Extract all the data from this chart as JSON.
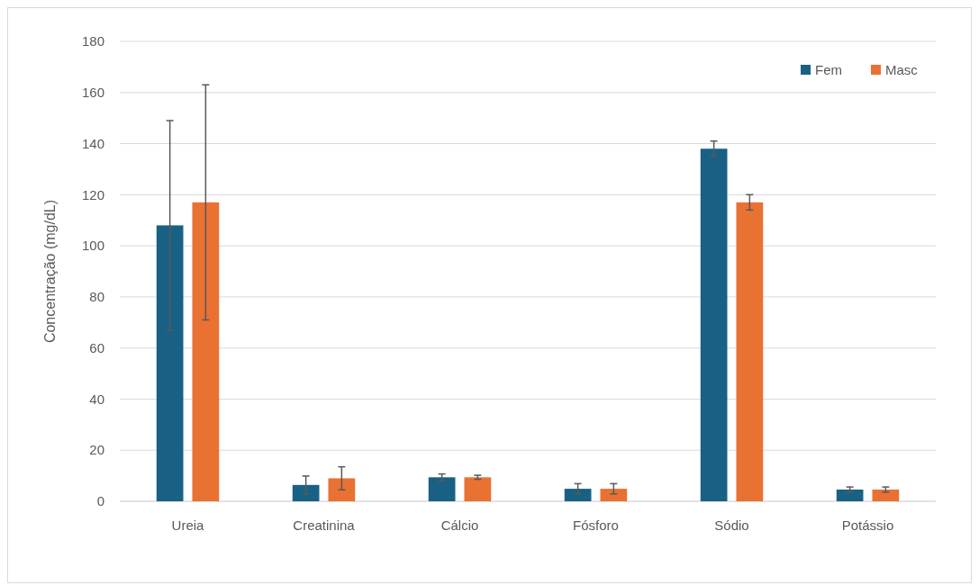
{
  "chart_data": {
    "type": "bar",
    "ylabel": "Concentração (mg/dL)",
    "categories": [
      "Ureia",
      "Creatinina",
      "Cálcio",
      "Fósforo",
      "Sódio",
      "Potássio"
    ],
    "series": [
      {
        "name": "Fem",
        "color": "#196184",
        "values": [
          108,
          6.4,
          9.4,
          4.9,
          138,
          4.6
        ],
        "errors": [
          41,
          3.5,
          1.3,
          2,
          3,
          1
        ]
      },
      {
        "name": "Masc",
        "color": "#e97132",
        "values": [
          117,
          9,
          9.4,
          4.9,
          117,
          4.6
        ],
        "errors": [
          46,
          4.5,
          0.8,
          2,
          3,
          1
        ]
      }
    ],
    "ylim": [
      0,
      180
    ],
    "yticks": [
      0,
      20,
      40,
      60,
      80,
      100,
      120,
      140,
      160,
      180
    ],
    "grid": "y",
    "legend": "top right"
  }
}
